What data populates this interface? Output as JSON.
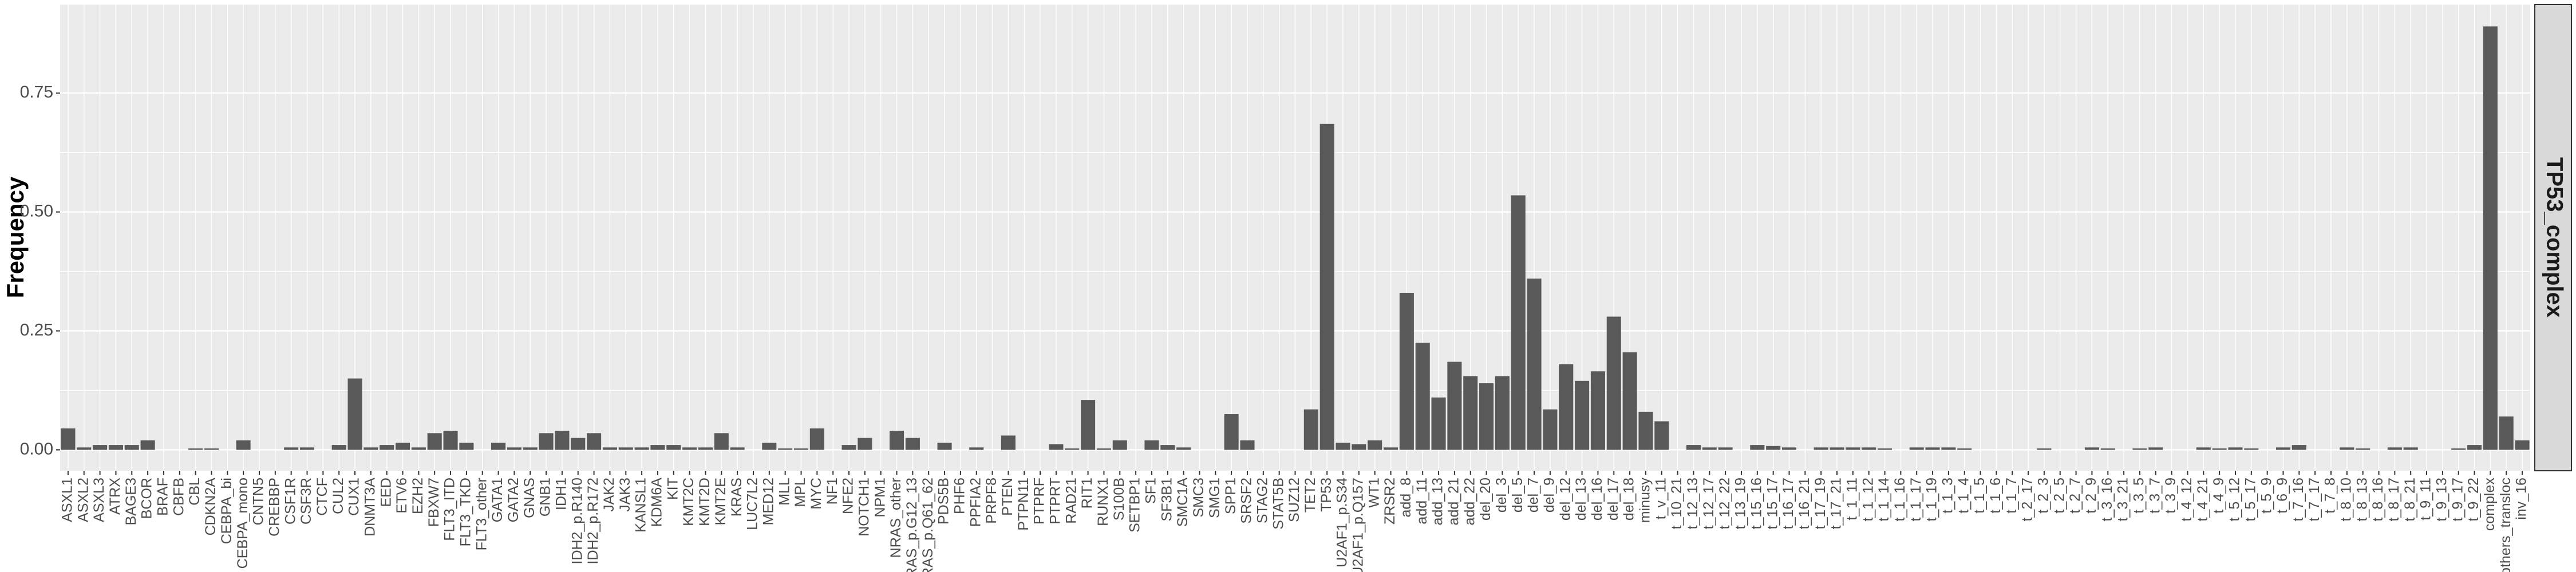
{
  "chart_data": {
    "type": "bar",
    "y_label": "Frequency",
    "facet_label": "TP53_complex",
    "color": "#595959",
    "ylim": [
      -0.044,
      0.936
    ],
    "yticks": [
      {
        "value": 0,
        "label": "0.00"
      },
      {
        "value": 0.25,
        "label": "0.25"
      },
      {
        "value": 0.5,
        "label": "0.50"
      },
      {
        "value": 0.75,
        "label": "0.75"
      }
    ],
    "grid": true,
    "categories": [
      "ASXL1",
      "ASXL2",
      "ASXL3",
      "ATRX",
      "BAGE3",
      "BCOR",
      "BRAF",
      "CBFB",
      "CBL",
      "CDKN2A",
      "CEBPA_bi",
      "CEBPA_mono",
      "CNTN5",
      "CREBBP",
      "CSF1R",
      "CSF3R",
      "CTCF",
      "CUL2",
      "CUX1",
      "DNMT3A",
      "EED",
      "ETV6",
      "EZH2",
      "FBXW7",
      "FLT3_ITD",
      "FLT3_TKD",
      "FLT3_other",
      "GATA1",
      "GATA2",
      "GNAS",
      "GNB1",
      "IDH1",
      "IDH2_p.R140",
      "IDH2_p.R172",
      "JAK2",
      "JAK3",
      "KANSL1",
      "KDM6A",
      "KIT",
      "KMT2C",
      "KMT2D",
      "KMT2E",
      "KRAS",
      "LUC7L2",
      "MED12",
      "MLL",
      "MPL",
      "MYC",
      "NF1",
      "NFE2",
      "NOTCH1",
      "NPM1",
      "NRAS_other",
      "NRAS_p.G12_13",
      "NRAS_p.Q61_62",
      "PDS5B",
      "PHF6",
      "PPFIA2",
      "PRPF8",
      "PTEN",
      "PTPN11",
      "PTPRF",
      "PTPRT",
      "RAD21",
      "RIT1",
      "RUNX1",
      "S100B",
      "SETBP1",
      "SF1",
      "SF3B1",
      "SMC1A",
      "SMC3",
      "SMG1",
      "SPP1",
      "SRSF2",
      "STAG2",
      "STAT5B",
      "SUZ12",
      "TET2",
      "TP53",
      "U2AF1_p.S34",
      "U2AF1_p.Q157",
      "WT1",
      "ZRSR2",
      "add_8",
      "add_11",
      "add_13",
      "add_21",
      "add_22",
      "del_20",
      "del_3",
      "del_5",
      "del_7",
      "del_9",
      "del_12",
      "del_13",
      "del_16",
      "del_17",
      "del_18",
      "minusy",
      "t_v_11",
      "t_10_21",
      "t_12_13",
      "t_12_17",
      "t_12_22",
      "t_13_19",
      "t_15_16",
      "t_15_17",
      "t_16_17",
      "t_16_21",
      "t_17_19",
      "t_17_21",
      "t_1_11",
      "t_1_12",
      "t_1_14",
      "t_1_16",
      "t_1_17",
      "t_1_19",
      "t_1_3",
      "t_1_4",
      "t_1_5",
      "t_1_6",
      "t_1_7",
      "t_2_17",
      "t_2_3",
      "t_2_5",
      "t_2_7",
      "t_2_9",
      "t_3_16",
      "t_3_21",
      "t_3_5",
      "t_3_7",
      "t_3_9",
      "t_4_12",
      "t_4_21",
      "t_4_9",
      "t_5_12",
      "t_5_17",
      "t_5_9",
      "t_6_9",
      "t_7_16",
      "t_7_17",
      "t_7_8",
      "t_8_10",
      "t_8_13",
      "t_8_16",
      "t_8_17",
      "t_8_21",
      "t_9_11",
      "t_9_13",
      "t_9_17",
      "t_9_22",
      "complex",
      "others_transloc",
      "inv_16"
    ],
    "values": [
      0.045,
      0.005,
      0.01,
      0.01,
      0.01,
      0.02,
      0,
      0,
      0.003,
      0.003,
      0,
      0.02,
      0,
      0,
      0.005,
      0.005,
      0,
      0.01,
      0.15,
      0.005,
      0.01,
      0.015,
      0.005,
      0.035,
      0.04,
      0.015,
      0,
      0.015,
      0.005,
      0.005,
      0.035,
      0.04,
      0.025,
      0.035,
      0.005,
      0.005,
      0.005,
      0.01,
      0.01,
      0.005,
      0.005,
      0.035,
      0.005,
      0,
      0.015,
      0.003,
      0.003,
      0.045,
      0,
      0.01,
      0.025,
      0,
      0.04,
      0.025,
      0,
      0.015,
      0,
      0.005,
      0,
      0.03,
      0,
      0,
      0.012,
      0.003,
      0.105,
      0.003,
      0.02,
      0,
      0.02,
      0.01,
      0.005,
      0,
      0,
      0.075,
      0.02,
      0,
      0,
      0,
      0.085,
      0.685,
      0.015,
      0.012,
      0.02,
      0.005,
      0.33,
      0.225,
      0.11,
      0.185,
      0.155,
      0.14,
      0.155,
      0.535,
      0.36,
      0.085,
      0.18,
      0.145,
      0.165,
      0.28,
      0.205,
      0.08,
      0.06,
      0,
      0.01,
      0.005,
      0.005,
      0,
      0.01,
      0.008,
      0.005,
      0,
      0.005,
      0.005,
      0.005,
      0.005,
      0.003,
      0,
      0.005,
      0.005,
      0.005,
      0.003,
      0,
      0,
      0,
      0,
      0.003,
      0,
      0,
      0.005,
      0.003,
      0,
      0.003,
      0.005,
      0,
      0,
      0.005,
      0.003,
      0.005,
      0.003,
      0,
      0.005,
      0.01,
      0,
      0,
      0.005,
      0.003,
      0,
      0.005,
      0.005,
      0,
      0,
      0.003,
      0.01,
      0.89,
      0.07,
      0.02
    ]
  }
}
